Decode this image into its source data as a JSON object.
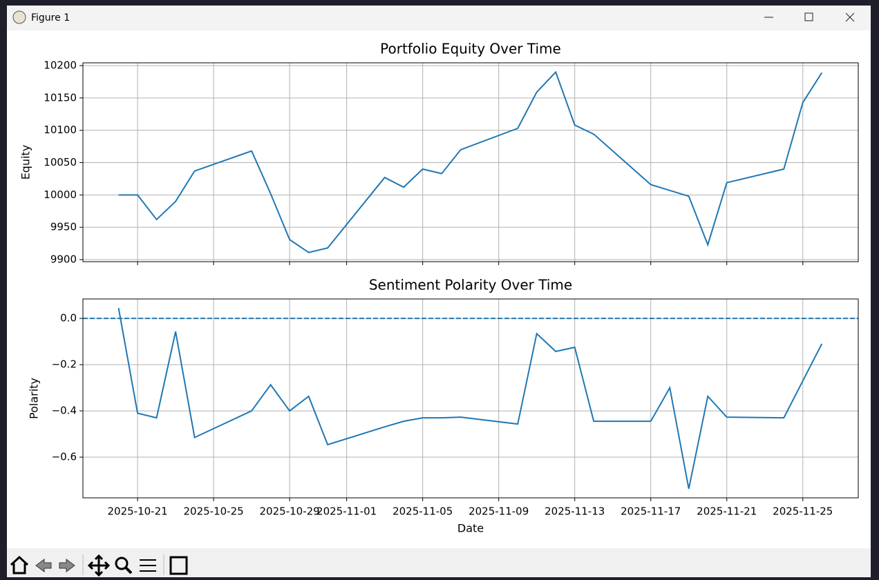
{
  "window": {
    "title": "Figure 1"
  },
  "chart_data": [
    {
      "type": "line",
      "title": "Portfolio Equity Over Time",
      "y_label": "Equity",
      "x": [
        "2025-10-20",
        "2025-10-21",
        "2025-10-22",
        "2025-10-23",
        "2025-10-24",
        "2025-10-27",
        "2025-10-28",
        "2025-10-29",
        "2025-10-30",
        "2025-10-31",
        "2025-11-03",
        "2025-11-04",
        "2025-11-05",
        "2025-11-06",
        "2025-11-07",
        "2025-11-10",
        "2025-11-11",
        "2025-11-12",
        "2025-11-13",
        "2025-11-14",
        "2025-11-17",
        "2025-11-18",
        "2025-11-19",
        "2025-11-20",
        "2025-11-21",
        "2025-11-24",
        "2025-11-25",
        "2025-11-26"
      ],
      "values": [
        10000,
        10000,
        9962,
        9990,
        10037,
        10068,
        10002,
        9931,
        9911,
        9918,
        10027,
        10012,
        10040,
        10033,
        10070,
        10103,
        10159,
        10190,
        10108,
        10094,
        10016,
        10007,
        9998,
        9923,
        10019,
        10040,
        10143,
        10189
      ],
      "color": "#1f77b4",
      "xlim": [
        "2025-10-18T03:00Z",
        "2025-11-27T22:00Z"
      ],
      "xticks": [
        "2025-10-21",
        "2025-10-25",
        "2025-10-29",
        "2025-11-01",
        "2025-11-05",
        "2025-11-09",
        "2025-11-13",
        "2025-11-17",
        "2025-11-21",
        "2025-11-25"
      ],
      "ylim": [
        9896.8,
        10204.3
      ],
      "yticks": [
        9900,
        9950,
        10000,
        10050,
        10100,
        10150,
        10200
      ],
      "grid": true
    },
    {
      "type": "line",
      "title": "Sentiment Polarity Over Time",
      "y_label": "Polarity",
      "x_label": "Date",
      "x": [
        "2025-10-20",
        "2025-10-21",
        "2025-10-22",
        "2025-10-23",
        "2025-10-24",
        "2025-10-27",
        "2025-10-28",
        "2025-10-29",
        "2025-10-30",
        "2025-10-31",
        "2025-11-03",
        "2025-11-04",
        "2025-11-05",
        "2025-11-06",
        "2025-11-07",
        "2025-11-10",
        "2025-11-11",
        "2025-11-12",
        "2025-11-13",
        "2025-11-14",
        "2025-11-17",
        "2025-11-18",
        "2025-11-19",
        "2025-11-20",
        "2025-11-21",
        "2025-11-24",
        "2025-11-25",
        "2025-11-26"
      ],
      "values": [
        0.045,
        -0.41,
        -0.43,
        -0.057,
        -0.515,
        -0.4,
        -0.287,
        -0.4,
        -0.337,
        -0.546,
        -0.469,
        -0.445,
        -0.43,
        -0.43,
        -0.427,
        -0.457,
        -0.066,
        -0.143,
        -0.125,
        -0.445,
        -0.445,
        -0.3,
        -0.737,
        -0.337,
        -0.427,
        -0.43,
        -0.27,
        -0.11
      ],
      "color": "#1f77b4",
      "hline": 0,
      "xlim": [
        "2025-10-18T03:00Z",
        "2025-11-27T22:00Z"
      ],
      "xticks": [
        "2025-10-21",
        "2025-10-25",
        "2025-10-29",
        "2025-11-01",
        "2025-11-05",
        "2025-11-09",
        "2025-11-13",
        "2025-11-17",
        "2025-11-21",
        "2025-11-25"
      ],
      "ylim": [
        -0.776,
        0.084
      ],
      "yticks": [
        {
          "value": -0.6,
          "label": "−0.6"
        },
        {
          "value": -0.4,
          "label": "−0.4"
        },
        {
          "value": -0.2,
          "label": "−0.2"
        },
        {
          "value": 0,
          "label": "0.0"
        }
      ],
      "grid": true
    }
  ]
}
